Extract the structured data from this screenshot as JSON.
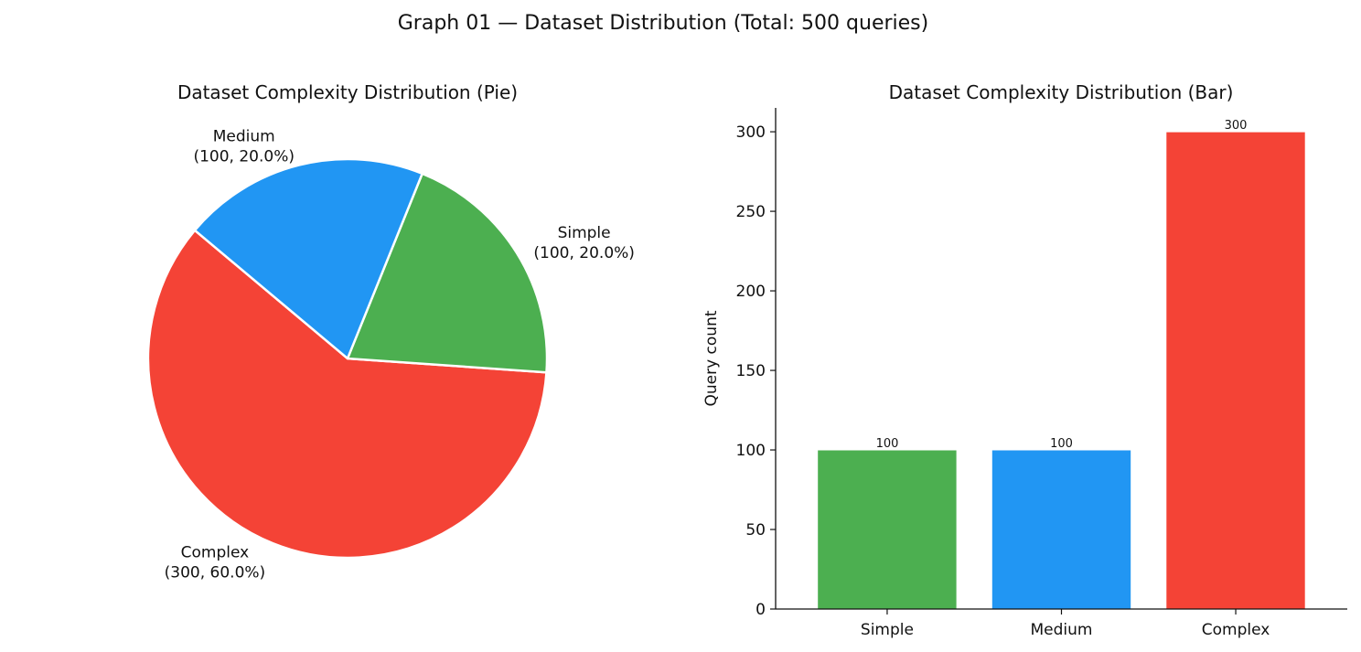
{
  "figure": {
    "title": "Graph 01 — Dataset Distribution  (Total: 500 queries)"
  },
  "chart_data": [
    {
      "type": "pie",
      "title": "Dataset Complexity Distribution (Pie)",
      "start_angle_deg": 140,
      "direction": "counterclockwise",
      "slices": [
        {
          "name": "Complex",
          "value": 300,
          "percent": 60.0,
          "line1": "Complex",
          "line2": "(300, 60.0%)",
          "color": "#f44336"
        },
        {
          "name": "Simple",
          "value": 100,
          "percent": 20.0,
          "line1": "Simple",
          "line2": "(100, 20.0%)",
          "color": "#4caf50"
        },
        {
          "name": "Medium",
          "value": 100,
          "percent": 20.0,
          "line1": "Medium",
          "line2": "(100, 20.0%)",
          "color": "#2196f3"
        }
      ]
    },
    {
      "type": "bar",
      "title": "Dataset Complexity Distribution (Bar)",
      "xlabel": "",
      "ylabel": "Query count",
      "categories": [
        "Simple",
        "Medium",
        "Complex"
      ],
      "values": [
        100,
        100,
        300
      ],
      "data_labels": [
        "100",
        "100",
        "300"
      ],
      "colors": [
        "#4caf50",
        "#2196f3",
        "#f44336"
      ],
      "ylim": [
        0,
        315
      ],
      "yticks": [
        0,
        50,
        100,
        150,
        200,
        250,
        300
      ],
      "ytick_labels": [
        "0",
        "50",
        "100",
        "150",
        "200",
        "250",
        "300"
      ],
      "grid": false,
      "legend": "none"
    }
  ]
}
